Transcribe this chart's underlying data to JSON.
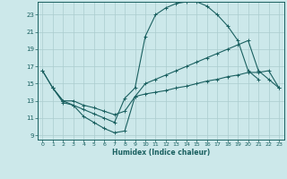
{
  "xlabel": "Humidex (Indice chaleur)",
  "bg_color": "#cce8ea",
  "grid_color": "#aaccce",
  "line_color": "#1a6060",
  "xlim": [
    -0.5,
    23.5
  ],
  "ylim": [
    8.5,
    24.5
  ],
  "yticks": [
    9,
    11,
    13,
    15,
    17,
    19,
    21,
    23
  ],
  "xticks": [
    0,
    1,
    2,
    3,
    4,
    5,
    6,
    7,
    8,
    9,
    10,
    11,
    12,
    13,
    14,
    15,
    16,
    17,
    18,
    19,
    20,
    21,
    22,
    23
  ],
  "line1_x": [
    0,
    1,
    2,
    3,
    4,
    5,
    6,
    7,
    8,
    9,
    10,
    11,
    12,
    13,
    14,
    15,
    16,
    17,
    18,
    19,
    20,
    21,
    22,
    23
  ],
  "line1_y": [
    16.5,
    14.5,
    13.0,
    13.0,
    12.5,
    12.2,
    11.8,
    11.4,
    11.8,
    13.5,
    15.0,
    15.5,
    16.0,
    16.5,
    17.0,
    17.5,
    18.0,
    18.5,
    19.0,
    19.5,
    20.0,
    16.5,
    15.5,
    14.5
  ],
  "line2_x": [
    0,
    1,
    2,
    3,
    4,
    5,
    6,
    7,
    8,
    9,
    10,
    11,
    12,
    13,
    14,
    15,
    16,
    17,
    18,
    19,
    20,
    21,
    22,
    23
  ],
  "line2_y": [
    16.5,
    14.5,
    13.0,
    12.5,
    12.0,
    11.5,
    11.0,
    10.5,
    13.3,
    14.5,
    20.5,
    23.0,
    23.8,
    24.3,
    24.5,
    24.5,
    24.0,
    23.0,
    21.7,
    20.0,
    16.5,
    15.5,
    null,
    null
  ],
  "line3_x": [
    1,
    2,
    3,
    4,
    5,
    6,
    7,
    8,
    9,
    10,
    11,
    12,
    13,
    14,
    15,
    16,
    17,
    18,
    19,
    20,
    21,
    22,
    23
  ],
  "line3_y": [
    14.5,
    12.8,
    12.5,
    11.2,
    10.5,
    9.8,
    9.3,
    9.5,
    13.5,
    13.8,
    14.0,
    14.2,
    14.5,
    14.7,
    15.0,
    15.3,
    15.5,
    15.8,
    16.0,
    16.3,
    16.3,
    16.5,
    14.5
  ]
}
